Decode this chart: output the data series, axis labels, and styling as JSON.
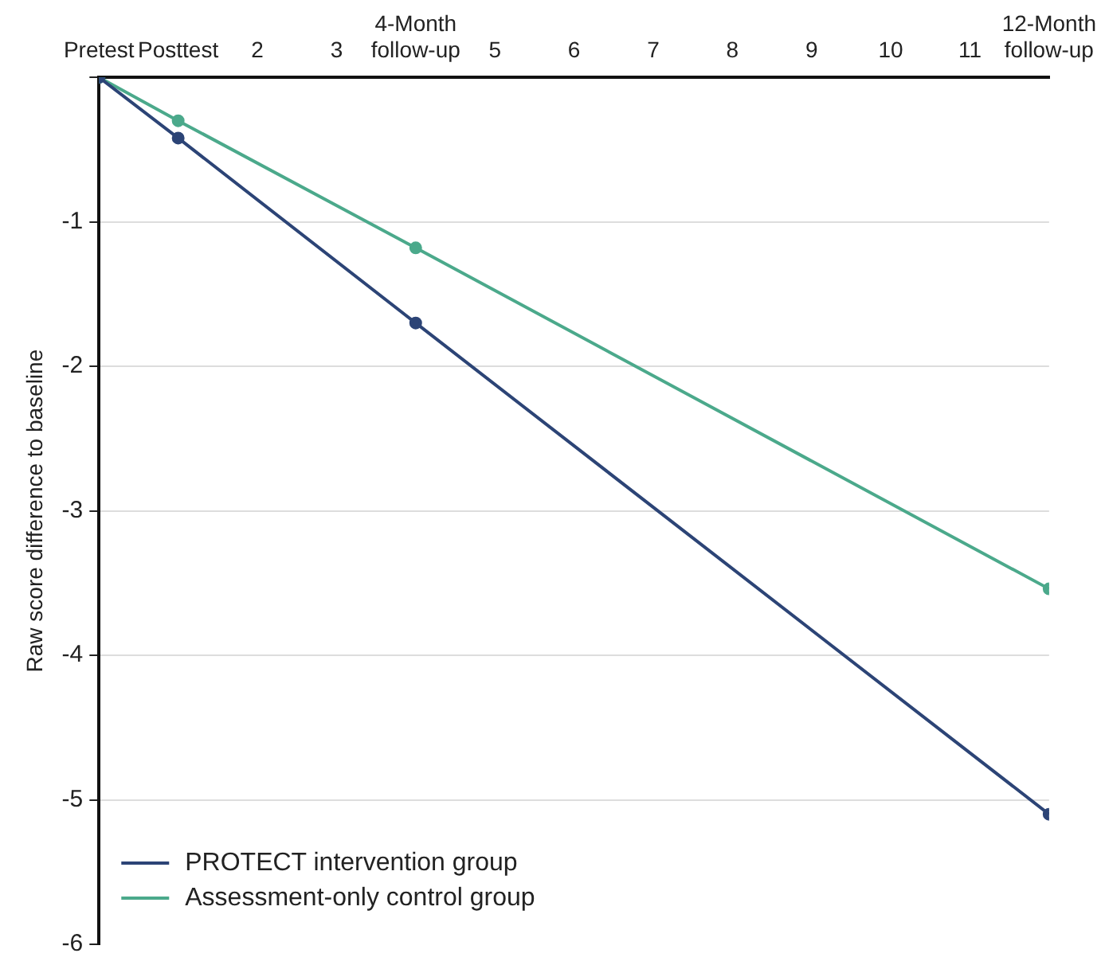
{
  "chart_data": {
    "type": "line",
    "ylabel": "Raw score difference to baseline",
    "xlim": [
      0,
      12
    ],
    "xticks": [
      {
        "value": 0,
        "label": "Pretest"
      },
      {
        "value": 1,
        "label": "Posttest"
      },
      2,
      3,
      {
        "value": 4,
        "label": "4-Month follow-up"
      },
      5,
      6,
      7,
      8,
      9,
      10,
      11,
      {
        "value": 12,
        "label": "12-Month follow-up"
      }
    ],
    "ylim": [
      -6,
      0
    ],
    "yticks": [
      {
        "value": 0,
        "label": null
      },
      -1,
      -2,
      -3,
      -4,
      -5,
      -6
    ],
    "x": [
      0,
      1,
      4,
      12
    ],
    "series": [
      {
        "name": "PROTECT intervention group",
        "color": "#2c4476",
        "values": [
          0,
          -0.42,
          -1.7,
          -5.1
        ]
      },
      {
        "name": "Assessment-only control group",
        "color": "#4ba98b",
        "values": [
          0,
          -0.3,
          -1.18,
          -3.54
        ]
      }
    ],
    "grid": "y",
    "legend": "bottom left",
    "marker": "circle",
    "line_style": "solid"
  }
}
